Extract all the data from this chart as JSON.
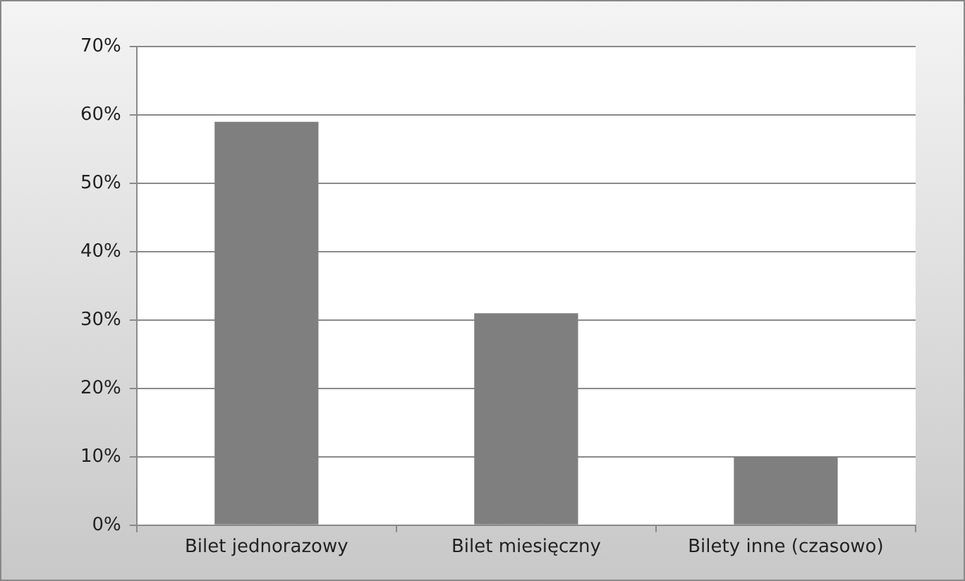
{
  "chart_data": {
    "type": "bar",
    "categories": [
      "Bilet jednorazowy",
      "Bilet miesięczny",
      "Bilety inne (czasowo)"
    ],
    "values": [
      59,
      31,
      10
    ],
    "color": "#7f7f7f",
    "ylim": [
      0,
      70
    ],
    "yticks": [
      {
        "value": 0,
        "label": "0%"
      },
      {
        "value": 10,
        "label": "10%"
      },
      {
        "value": 20,
        "label": "20%"
      },
      {
        "value": 30,
        "label": "30%"
      },
      {
        "value": 40,
        "label": "40%"
      },
      {
        "value": 50,
        "label": "50%"
      },
      {
        "value": 60,
        "label": "60%"
      },
      {
        "value": 70,
        "label": "70%"
      }
    ],
    "grid": "y",
    "legend": false
  }
}
